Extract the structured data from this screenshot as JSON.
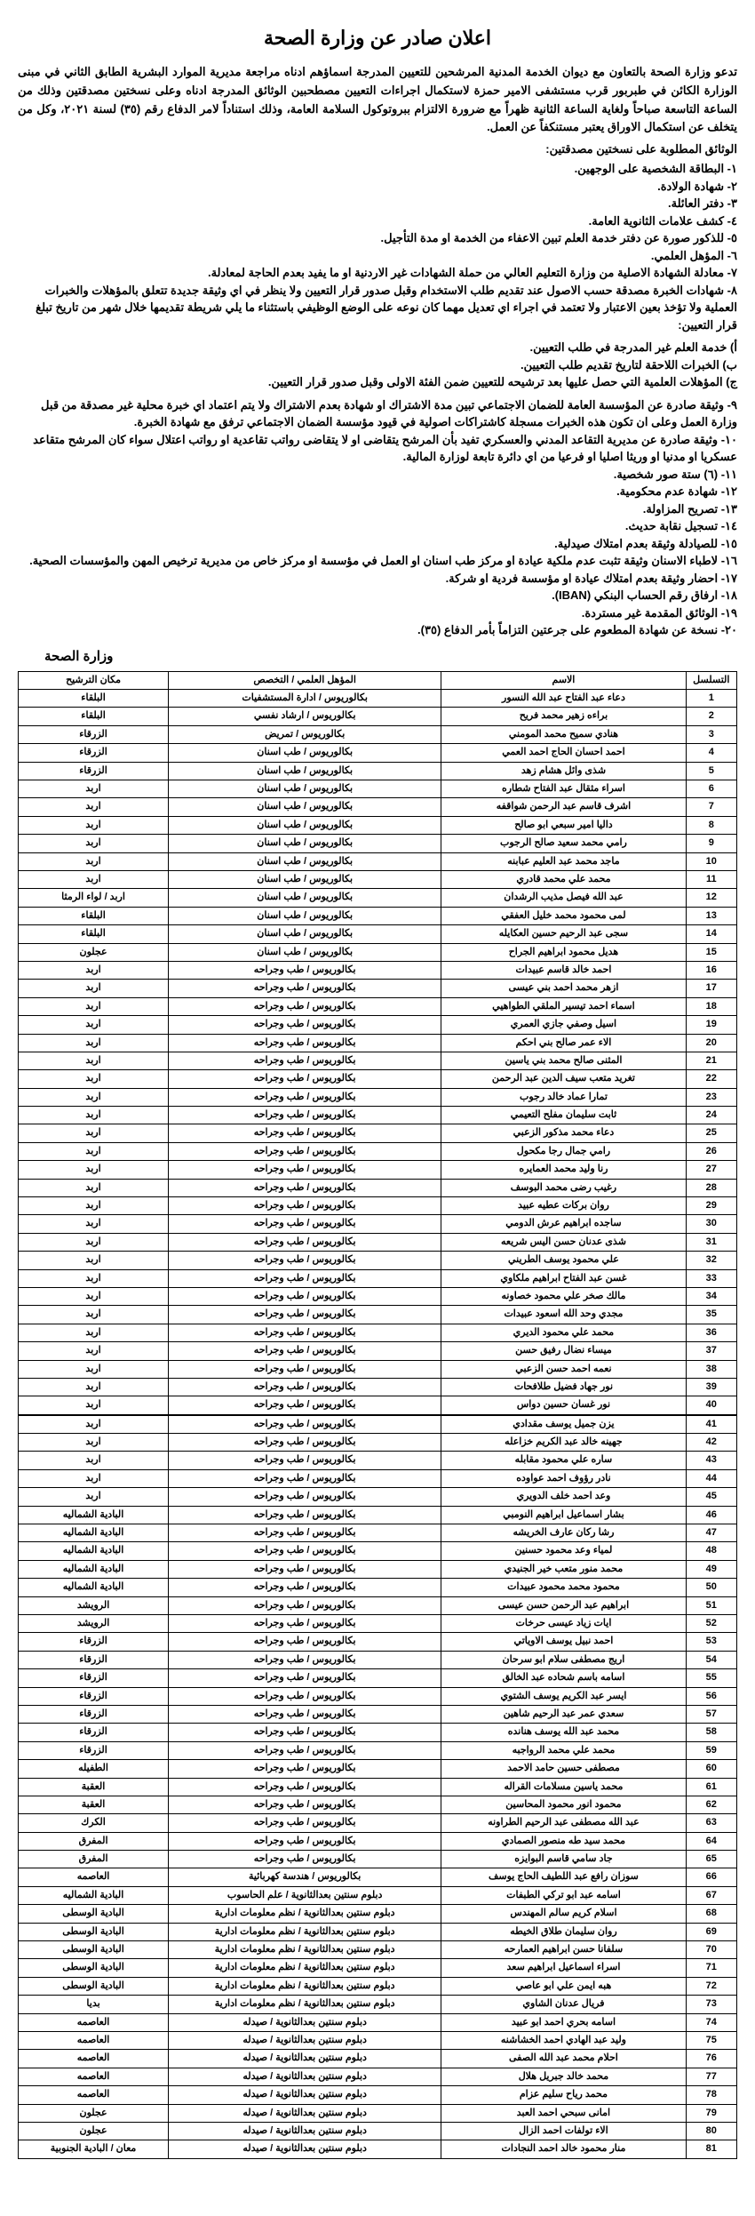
{
  "title": "اعلان صادر عن وزارة الصحة",
  "intro": "تدعو وزارة الصحة بالتعاون مع ديوان الخدمة المدنية المرشحين للتعيين المدرجة اسماؤهم ادناه مراجعة مديرية الموارد البشرية الطابق الثاني في مبنى الوزارة الكائن في طبربور قرب مستشفى الامير حمزة لاستكمال اجراءات التعيين مصطحبين الوثائق المدرجة ادناه وعلى نسختين مصدقتين وذلك من الساعة التاسعة صباحاً ولغاية الساعة الثانية ظهراً مع ضرورة الالتزام ببروتوكول السلامة العامة، وذلك استناداً لامر الدفاع رقم (٣٥) لسنة ٢٠٢١، وكل من يتخلف عن استكمال الاوراق يعتبر مستنكفاً عن العمل.",
  "docs_title": "الوثائق المطلوبة على نسختين مصدقتين:",
  "docs": [
    "١- البطاقة الشخصية على الوجهين.",
    "٢- شهادة الولادة.",
    "٣- دفتر العائلة.",
    "٤- كشف علامات الثانوية العامة.",
    "٥- للذكور صورة عن دفتر خدمة العلم تبين الاعفاء من الخدمة او مدة التأجيل.",
    "٦- المؤهل العلمي.",
    "٧- معادلة الشهادة الاصلية من وزارة التعليم العالي من حملة الشهادات غير الاردنية او ما يفيد بعدم الحاجة لمعادلة.",
    "٨- شهادات الخبرة مصدقة حسب الاصول عند تقديم طلب الاستخدام وقبل صدور قرار التعيين ولا ينظر في اي وثيقة جديدة تتعلق بالمؤهلات والخبرات العملية ولا تؤخذ بعين الاعتبار ولا تعتمد في اجراء اي تعديل مهما كان نوعه على الوضع الوظيفي باستثناء ما يلي شريطة تقديمها خلال شهر من تاريخ تبلغ قرار التعيين:"
  ],
  "sub_docs": [
    "أ) خدمة العلم غير المدرجة في طلب التعيين.",
    "ب) الخبرات اللاحقة لتاريخ تقديم طلب التعيين.",
    "ج) المؤهلات العلمية التي حصل عليها بعد ترشيحه للتعيين ضمن الفئة الاولى وقبل صدور قرار التعيين."
  ],
  "docs2": [
    "٩- وثيقة صادرة عن المؤسسة العامة للضمان الاجتماعي تبين مدة الاشتراك او شهادة بعدم الاشتراك ولا يتم اعتماد اي خبرة محلية غير مصدقة من قبل وزارة العمل وعلى ان تكون هذه الخبرات مسجلة كاشتراكات اصولية في قيود مؤسسة الضمان الاجتماعي ترفق مع شهادة الخبرة.",
    "١٠- وثيقة صادرة عن مديرية التقاعد المدني والعسكري تفيد بأن المرشح يتقاضى او لا يتقاضى رواتب تقاعدية او رواتب اعتلال سواء كان المرشح متقاعد عسكريا او مدنيا او وريثا اصليا او فرعيا من اي دائرة تابعة لوزارة المالية.",
    "١١- (٦) ستة صور شخصية.",
    "١٢- شهادة عدم محكومية.",
    "١٣- تصريح المزاولة.",
    "١٤- تسجيل نقابة حديث.",
    "١٥- للصيادلة وثيقة بعدم امتلاك صيدلية.",
    "١٦- لاطباء الاسنان وثيقة تثبت عدم ملكية عيادة او مركز طب اسنان او العمل في مؤسسة او مركز خاص من مديرية ترخيص المهن والمؤسسات الصحية.",
    "١٧- احضار وثيقة بعدم امتلاك عيادة او مؤسسة فردية او شركة.",
    "١٨- ارفاق رقم الحساب البنكي (IBAN).",
    "١٩- الوثائق المقدمة غير مستردة.",
    "٢٠- نسخة عن شهادة المطعوم على جرعتين التزاماً بأمر الدفاع (٣٥)."
  ],
  "signature": "وزارة الصحة",
  "headers": [
    "التسلسل",
    "الاسم",
    "المؤهل العلمي / التخصص",
    "مكان الترشيح"
  ],
  "rows": [
    [
      "1",
      "دعاء عبد الفتاح عبد الله النسور",
      "بكالوريوس / ادارة المستشفيات",
      "البلقاء"
    ],
    [
      "2",
      "براءه زهير محمد فريح",
      "بكالوريوس / ارشاد نفسي",
      "البلقاء"
    ],
    [
      "3",
      "هنادي سميح محمد المومني",
      "بكالوريوس / تمريض",
      "الزرقاء"
    ],
    [
      "4",
      "احمد احسان الحاج احمد العمي",
      "بكالوريوس / طب اسنان",
      "الزرقاء"
    ],
    [
      "5",
      "شذى وائل هشام زهد",
      "بكالوريوس / طب اسنان",
      "الزرقاء"
    ],
    [
      "6",
      "اسراء مثقال عبد الفتاح شطاره",
      "بكالوريوس / طب اسنان",
      "اربد"
    ],
    [
      "7",
      "اشرف قاسم عبد الرحمن شواقفه",
      "بكالوريوس / طب اسنان",
      "اربد"
    ],
    [
      "8",
      "داليا امير سبعي ابو صالح",
      "بكالوريوس / طب اسنان",
      "اربد"
    ],
    [
      "9",
      "رامي محمد سعيد صالح الرجوب",
      "بكالوريوس / طب اسنان",
      "اربد"
    ],
    [
      "10",
      "ماجد محمد عبد العليم عبابنه",
      "بكالوريوس / طب اسنان",
      "اربد"
    ],
    [
      "11",
      "محمد علي محمد قادري",
      "بكالوريوس / طب اسنان",
      "اربد"
    ],
    [
      "12",
      "عبد الله فيصل مذيب الرشدان",
      "بكالوريوس / طب اسنان",
      "اربد / لواء الرمثا"
    ],
    [
      "13",
      "لمى محمود محمد خليل العفقي",
      "بكالوريوس / طب اسنان",
      "البلقاء"
    ],
    [
      "14",
      "سجى عبد الرحيم حسين العكايله",
      "بكالوريوس / طب اسنان",
      "البلقاء"
    ],
    [
      "15",
      "هديل محمود ابراهيم الجراح",
      "بكالوريوس / طب اسنان",
      "عجلون"
    ],
    [
      "16",
      "احمد خالد قاسم عبيدات",
      "بكالوريوس / طب وجراحه",
      "اربد"
    ],
    [
      "17",
      "ازهر محمد احمد بني عيسى",
      "بكالوريوس / طب وجراحه",
      "اربد"
    ],
    [
      "18",
      "اسماء احمد تيسير الملقي الطواهيي",
      "بكالوريوس / طب وجراحه",
      "اربد"
    ],
    [
      "19",
      "اسيل وصفي جازي العمري",
      "بكالوريوس / طب وجراحه",
      "اربد"
    ],
    [
      "20",
      "الاء عمر صالح بني احكم",
      "بكالوريوس / طب وجراحه",
      "اربد"
    ],
    [
      "21",
      "المثنى صالح محمد بني ياسين",
      "بكالوريوس / طب وجراحه",
      "اربد"
    ],
    [
      "22",
      "تغريد متعب سيف الدين عبد الرحمن",
      "بكالوريوس / طب وجراحه",
      "اربد"
    ],
    [
      "23",
      "تمارا عماد خالد رجوب",
      "بكالوريوس / طب وجراحه",
      "اربد"
    ],
    [
      "24",
      "ثابت سليمان مفلح التعيمي",
      "بكالوريوس / طب وجراحه",
      "اربد"
    ],
    [
      "25",
      "دعاء محمد مذكور الزعبي",
      "بكالوريوس / طب وجراحه",
      "اربد"
    ],
    [
      "26",
      "رامي جمال رجا مكحول",
      "بكالوريوس / طب وجراحه",
      "اربد"
    ],
    [
      "27",
      "رنا وليد محمد العمايره",
      "بكالوريوس / طب وجراحه",
      "اربد"
    ],
    [
      "28",
      "رغيب رضى محمد البوسف",
      "بكالوريوس / طب وجراحه",
      "اربد"
    ],
    [
      "29",
      "روان بركات عطيه عبيد",
      "بكالوريوس / طب وجراحه",
      "اربد"
    ],
    [
      "30",
      "ساجده ابراهيم عرش الدومي",
      "بكالوريوس / طب وجراحه",
      "اربد"
    ],
    [
      "31",
      "شذى عدنان حسن اليس شريعه",
      "بكالوريوس / طب وجراحه",
      "اربد"
    ],
    [
      "32",
      "علي محمود يوسف الطريني",
      "بكالوريوس / طب وجراحه",
      "اربد"
    ],
    [
      "33",
      "غسن عبد الفتاح ابراهيم ملكاوي",
      "بكالوريوس / طب وجراحه",
      "اربد"
    ],
    [
      "34",
      "مالك صخر علي محمود خصاونه",
      "بكالوريوس / طب وجراحه",
      "اربد"
    ],
    [
      "35",
      "مجدي وحد الله اسعود عبيدات",
      "بكالوريوس / طب وجراحه",
      "اربد"
    ],
    [
      "36",
      "محمد علي محمود الديري",
      "بكالوريوس / طب وجراحه",
      "اربد"
    ],
    [
      "37",
      "ميساء نضال رفيق حسن",
      "بكالوريوس / طب وجراحه",
      "اربد"
    ],
    [
      "38",
      "نعمه احمد حسن الزعبي",
      "بكالوريوس / طب وجراحه",
      "اربد"
    ],
    [
      "39",
      "نور جهاد فضيل طلافحات",
      "بكالوريوس / طب وجراحه",
      "اربد"
    ],
    [
      "40",
      "نور غسان حسين دواس",
      "بكالوريوس / طب وجراحه",
      "اربد"
    ],
    [
      "41",
      "يزن جميل يوسف مقدادي",
      "بكالوريوس / طب وجراحه",
      "اربد"
    ],
    [
      "42",
      "جهينه خالد عبد الكريم خزاعله",
      "بكالوريوس / طب وجراحه",
      "اربد"
    ],
    [
      "43",
      "ساره علي محمود مقابله",
      "بكالوريوس / طب وجراحه",
      "اربد"
    ],
    [
      "44",
      "نادر رؤوف احمد عواوده",
      "بكالوريوس / طب وجراحه",
      "اربد"
    ],
    [
      "45",
      "وعد احمد خلف الدويري",
      "بكالوريوس / طب وجراحه",
      "اربد"
    ],
    [
      "46",
      "بشار اسماعيل ابراهيم النومبي",
      "بكالوريوس / طب وجراحه",
      "البادية الشماليه"
    ],
    [
      "47",
      "رشا ركان عارف الخريشه",
      "بكالوريوس / طب وجراحه",
      "البادية الشماليه"
    ],
    [
      "48",
      "لمياء وعد محمود حسنين",
      "بكالوريوس / طب وجراحه",
      "البادية الشماليه"
    ],
    [
      "49",
      "محمد منور متعب خير الجنيدي",
      "بكالوريوس / طب وجراحه",
      "البادية الشماليه"
    ],
    [
      "50",
      "محمود محمد محمود عبيدات",
      "بكالوريوس / طب وجراحه",
      "البادية الشماليه"
    ],
    [
      "51",
      "ابراهيم عبد الرحمن حسن عيسى",
      "بكالوريوس / طب وجراحه",
      "الرويشد"
    ],
    [
      "52",
      "ايات زياد عيسى حرخات",
      "بكالوريوس / طب وجراحه",
      "الرويشد"
    ],
    [
      "53",
      "احمد نبيل يوسف الاوياتي",
      "بكالوريوس / طب وجراحه",
      "الزرقاء"
    ],
    [
      "54",
      "اريج مصطفى سلام ابو سرحان",
      "بكالوريوس / طب وجراحه",
      "الزرقاء"
    ],
    [
      "55",
      "اسامه باسم شحاده عبد الخالق",
      "بكالوريوس / طب وجراحه",
      "الزرقاء"
    ],
    [
      "56",
      "ايسر عبد الكريم يوسف الشتوي",
      "بكالوريوس / طب وجراحه",
      "الزرقاء"
    ],
    [
      "57",
      "سعدي عمر عبد الرحيم شاهين",
      "بكالوريوس / طب وجراحه",
      "الزرقاء"
    ],
    [
      "58",
      "محمد عبد الله يوسف هنانده",
      "بكالوريوس / طب وجراحه",
      "الزرقاء"
    ],
    [
      "59",
      "محمد علي محمد الرواجبه",
      "بكالوريوس / طب وجراحه",
      "الزرقاء"
    ],
    [
      "60",
      "مصطفى حسين حامد الاحمد",
      "بكالوريوس / طب وجراحه",
      "الطفيله"
    ],
    [
      "61",
      "محمد ياسين مسلامات القراله",
      "بكالوريوس / طب وجراحه",
      "العقبة"
    ],
    [
      "62",
      "محمود انور محمود المحاسين",
      "بكالوريوس / طب وجراحه",
      "العقبة"
    ],
    [
      "63",
      "عبد الله مصطفى عبد الرحيم الطراونه",
      "بكالوريوس / طب وجراحه",
      "الكرك"
    ],
    [
      "64",
      "محمد سيد طه منصور الصمادي",
      "بكالوريوس / طب وجراحه",
      "المفرق"
    ],
    [
      "65",
      "جاد سامي قاسم البوايزه",
      "بكالوريوس / طب وجراحه",
      "المفرق"
    ],
    [
      "66",
      "سوزان رافع عبد اللطيف الحاج يوسف",
      "بكالوريوس / هندسة كهربائية",
      "العاصمه"
    ],
    [
      "67",
      "اسامه عبد ابو تركي الطبفات",
      "دبلوم سنتين بعدالثانوية / علم الحاسوب",
      "البادية الشماليه"
    ],
    [
      "68",
      "اسلام كريم سالم المهندس",
      "دبلوم سنتين بعدالثانوية / نظم معلومات ادارية",
      "البادية الوسطى"
    ],
    [
      "69",
      "روان سليمان طلاق الخيطه",
      "دبلوم سنتين بعدالثانوية / نظم معلومات ادارية",
      "البادية الوسطى"
    ],
    [
      "70",
      "سلفانا حسن ابراهيم العمارحه",
      "دبلوم سنتين بعدالثانوية / نظم معلومات ادارية",
      "البادية الوسطى"
    ],
    [
      "71",
      "اسراء اسماعيل ابراهيم سعد",
      "دبلوم سنتين بعدالثانوية / نظم معلومات ادارية",
      "البادية الوسطى"
    ],
    [
      "72",
      "هبه ايمن علي ابو عاصي",
      "دبلوم سنتين بعدالثانوية / نظم معلومات ادارية",
      "البادية الوسطى"
    ],
    [
      "73",
      "فريال عدنان الشاوي",
      "دبلوم سنتين بعدالثانوية / نظم معلومات ادارية",
      "بديا"
    ],
    [
      "74",
      "اسامه بحري احمد ابو عبيد",
      "دبلوم سنتين بعدالثانوية / صيدله",
      "العاصمه"
    ],
    [
      "75",
      "وليد عبد الهادي احمد الخشاشنه",
      "دبلوم سنتين بعدالثانوية / صيدله",
      "العاصمه"
    ],
    [
      "76",
      "احلام محمد عبد الله الصفى",
      "دبلوم سنتين بعدالثانوية / صيدله",
      "العاصمه"
    ],
    [
      "77",
      "محمد خالد جبريل هلال",
      "دبلوم سنتين بعدالثانوية / صيدله",
      "العاصمه"
    ],
    [
      "78",
      "محمد رياح سليم عزام",
      "دبلوم سنتين بعدالثانوية / صيدله",
      "العاصمه"
    ],
    [
      "79",
      "امانى سبحي احمد العبد",
      "دبلوم سنتين بعدالثانوية / صيدله",
      "عجلون"
    ],
    [
      "80",
      "الاء تولفات احمد الزال",
      "دبلوم سنتين بعدالثانوية / صيدله",
      "عجلون"
    ],
    [
      "81",
      "منار محمود خالد احمد النجادات",
      "دبلوم سنتين بعدالثانوية / صيدله",
      "معان / البادية الجنوبية"
    ]
  ]
}
